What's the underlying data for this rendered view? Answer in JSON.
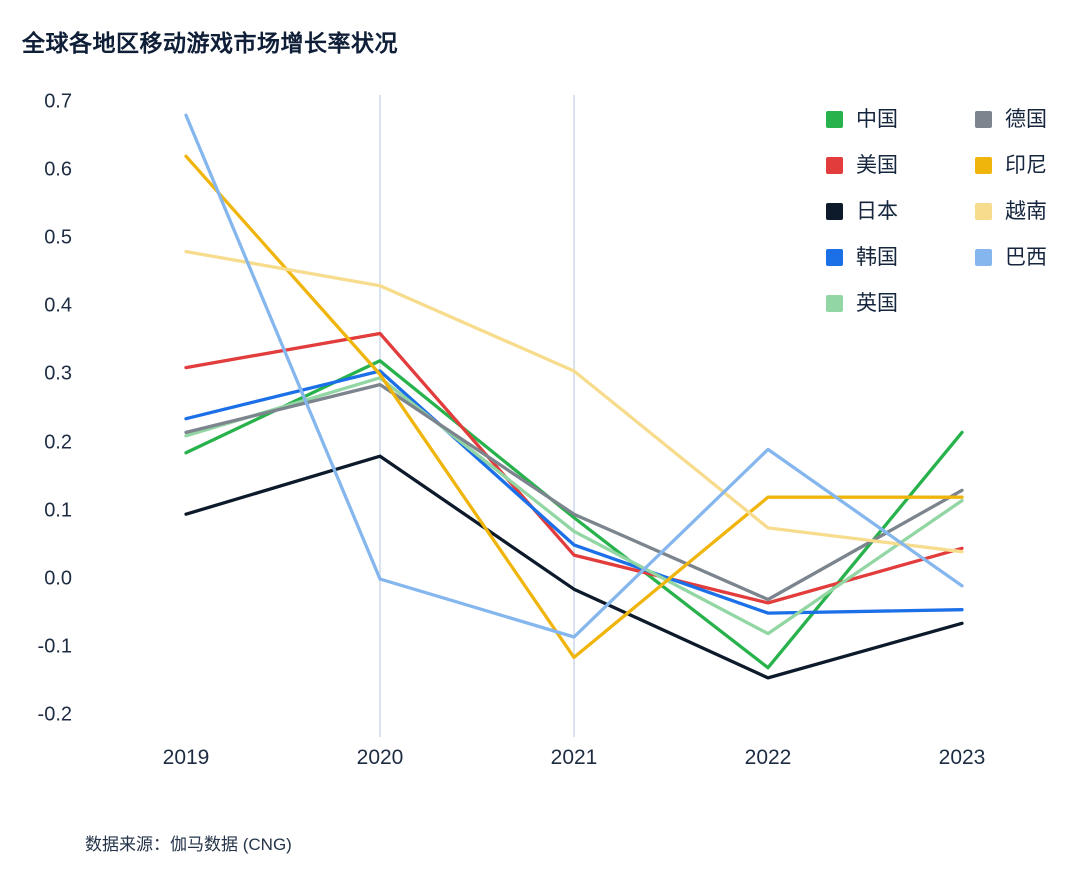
{
  "page": {
    "title": "全球各地区移动游戏市场增长率状况",
    "source": "数据来源：伽马数据 (CNG)"
  },
  "chart_data": {
    "type": "line",
    "title": "全球各地区移动游戏市场增长率状况",
    "x": [
      "2019",
      "2020",
      "2021",
      "2022",
      "2023"
    ],
    "series": [
      {
        "name": "中国",
        "color": "#27b24b",
        "values": [
          0.185,
          0.32,
          0.09,
          -0.13,
          0.215
        ]
      },
      {
        "name": "美国",
        "color": "#e23c3c",
        "values": [
          0.31,
          0.36,
          0.035,
          -0.035,
          0.045
        ]
      },
      {
        "name": "日本",
        "color": "#0d1a2b",
        "values": [
          0.095,
          0.18,
          -0.015,
          -0.145,
          -0.065
        ]
      },
      {
        "name": "韩国",
        "color": "#1b70e8",
        "values": [
          0.235,
          0.305,
          0.05,
          -0.05,
          -0.045
        ]
      },
      {
        "name": "英国",
        "color": "#92d6a4",
        "values": [
          0.21,
          0.295,
          0.07,
          -0.08,
          0.115
        ]
      },
      {
        "name": "德国",
        "color": "#7c848d",
        "values": [
          0.215,
          0.285,
          0.095,
          -0.03,
          0.13
        ]
      },
      {
        "name": "印尼",
        "color": "#f0b50c",
        "values": [
          0.62,
          0.3,
          -0.115,
          0.12,
          0.12
        ]
      },
      {
        "name": "越南",
        "color": "#f6dc8c",
        "values": [
          0.48,
          0.43,
          0.305,
          0.075,
          0.04
        ]
      },
      {
        "name": "巴西",
        "color": "#85b7ee",
        "values": [
          0.68,
          0.0,
          -0.085,
          0.19,
          -0.01
        ]
      }
    ],
    "xlabel": "",
    "ylabel": "",
    "ylim": [
      -0.2,
      0.7
    ],
    "yticks": [
      0.7,
      0.6,
      0.5,
      0.4,
      0.3,
      0.2,
      0.1,
      0.0,
      -0.1,
      -0.2
    ],
    "grid": "none",
    "vertical_gridlines": [
      "2020",
      "2021"
    ],
    "legend_position": "top-right",
    "legend_columns": [
      5,
      4
    ]
  }
}
